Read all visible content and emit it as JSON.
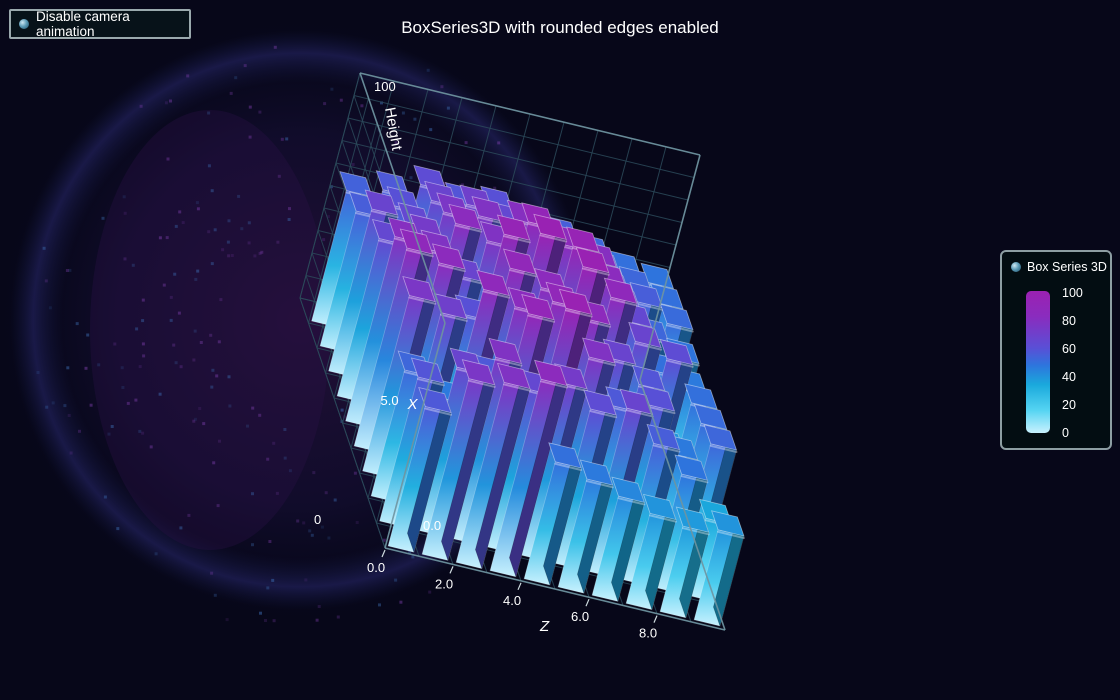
{
  "title": "BoxSeries3D with rounded edges enabled",
  "camera_button": {
    "label": "Disable camera animation"
  },
  "legend": {
    "title": "Box Series 3D",
    "ticks": [
      "100",
      "80",
      "60",
      "40",
      "20",
      "0"
    ],
    "gradient": [
      "#c8f1fe",
      "#55d4f2",
      "#1aa9dc",
      "#2e74dd",
      "#5a4fd6",
      "#8a2cbe",
      "#9b21b2"
    ]
  },
  "chart_data": {
    "type": "bar3d",
    "title": "BoxSeries3D with rounded edges enabled",
    "x_axis": {
      "label": "X",
      "ticks": [
        "0.0",
        "5.0"
      ],
      "range": [
        0,
        10
      ]
    },
    "y_axis": {
      "label": "Height",
      "ticks": [
        "0",
        "100"
      ],
      "range": [
        0,
        100
      ]
    },
    "z_axis": {
      "label": "Z",
      "ticks": [
        "0.0",
        "2.0",
        "4.0",
        "6.0",
        "8.0"
      ],
      "range": [
        0,
        10
      ]
    },
    "grid": true,
    "rounded_edges": true,
    "heights": [
      [
        62,
        78,
        80,
        85,
        52,
        48,
        44,
        40,
        38,
        40
      ],
      [
        64,
        72,
        80,
        70,
        76,
        68,
        72,
        60,
        50,
        34
      ],
      [
        56,
        48,
        62,
        92,
        98,
        80,
        62,
        66,
        48,
        56
      ],
      [
        78,
        74,
        88,
        84,
        90,
        86,
        72,
        64,
        40,
        54
      ],
      [
        88,
        85,
        66,
        90,
        85,
        98,
        88,
        72,
        68,
        52
      ],
      [
        82,
        80,
        72,
        94,
        98,
        96,
        84,
        70,
        52,
        48
      ],
      [
        70,
        76,
        84,
        80,
        92,
        86,
        82,
        66,
        56,
        50
      ],
      [
        72,
        70,
        78,
        80,
        82,
        76,
        70,
        62,
        60,
        54
      ],
      [
        60,
        66,
        72,
        74,
        70,
        68,
        64,
        60,
        56,
        52
      ],
      [
        58,
        62,
        68,
        64,
        66,
        62,
        60,
        56,
        52,
        50
      ]
    ]
  }
}
